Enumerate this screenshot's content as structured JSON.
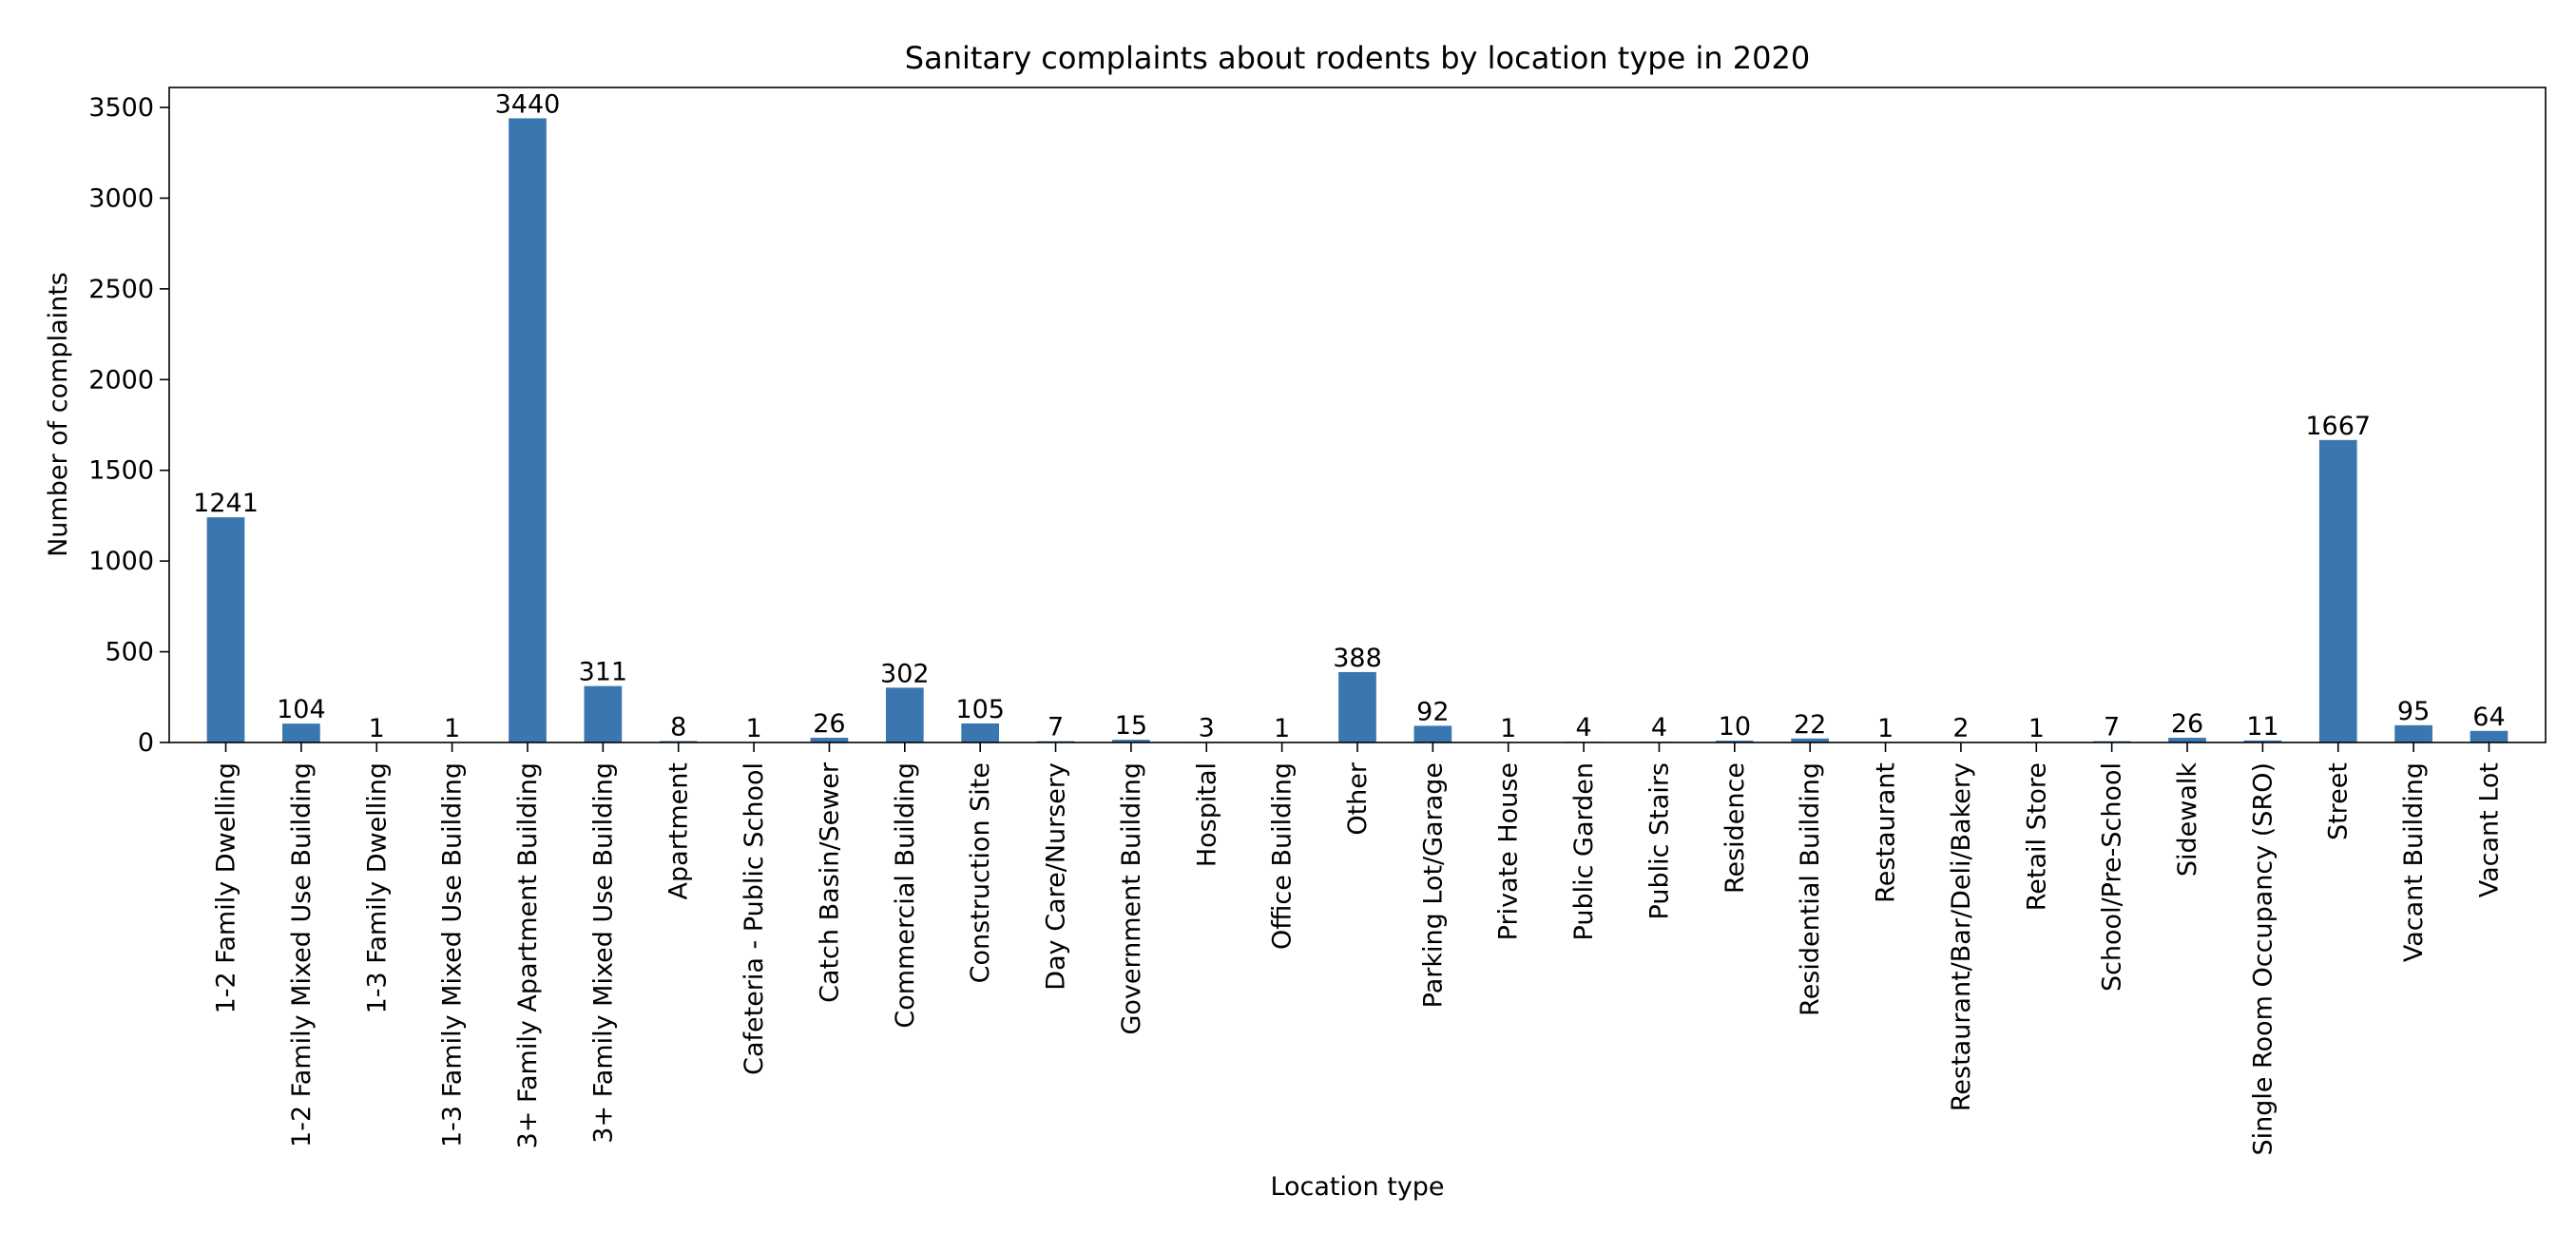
{
  "chart_data": {
    "type": "bar",
    "title": "Sanitary complaints about rodents by location type in 2020",
    "xlabel": "Location type",
    "ylabel": "Number of complaints",
    "ylim": [
      0,
      3600
    ],
    "yticks": [
      0,
      500,
      1000,
      1500,
      2000,
      2500,
      3000,
      3500
    ],
    "grid": false,
    "bar_color": "#3a76af",
    "show_value_labels": true,
    "categories": [
      "1-2 Family Dwelling",
      "1-2 Family Mixed Use Building",
      "1-3 Family Dwelling",
      "1-3 Family Mixed Use Building",
      "3+ Family Apartment Building",
      "3+ Family Mixed Use Building",
      "Apartment",
      "Cafeteria - Public School",
      "Catch Basin/Sewer",
      "Commercial Building",
      "Construction Site",
      "Day Care/Nursery",
      "Government Building",
      "Hospital",
      "Office Building",
      "Other",
      "Parking Lot/Garage",
      "Private House",
      "Public Garden",
      "Public Stairs",
      "Residence",
      "Residential Building",
      "Restaurant",
      "Restaurant/Bar/Deli/Bakery",
      "Retail Store",
      "School/Pre-School",
      "Sidewalk",
      "Single Room Occupancy (SRO)",
      "Street",
      "Vacant Building",
      "Vacant Lot"
    ],
    "values": [
      1241,
      104,
      1,
      1,
      3440,
      311,
      8,
      1,
      26,
      302,
      105,
      7,
      15,
      3,
      1,
      388,
      92,
      1,
      4,
      4,
      10,
      22,
      1,
      2,
      1,
      7,
      26,
      11,
      1667,
      95,
      64
    ]
  }
}
